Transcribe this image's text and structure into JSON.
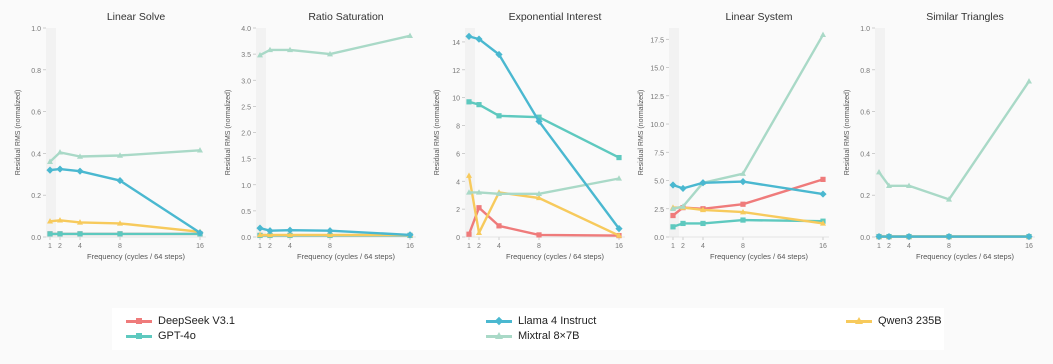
{
  "shared": {
    "xlabel": "Frequency (cycles / 64 steps)",
    "ylabel": "Residual RMS (normalized)",
    "xticks": [
      1,
      2,
      4,
      8,
      16
    ]
  },
  "colors": {
    "DeepSeek V3.1": "#ef7b7b",
    "GPT-4o": "#5ec9bf",
    "Llama 4 Instruct": "#4ab8d0",
    "Mixtral 8×7B": "#a9d9c7",
    "Qwen3 235B": "#f7ca5c"
  },
  "markers": {
    "DeepSeek V3.1": "square",
    "GPT-4o": "square",
    "Llama 4 Instruct": "diamond",
    "Mixtral 8×7B": "triangle",
    "Qwen3 235B": "triangle"
  },
  "legend": {
    "items": [
      {
        "label": "DeepSeek V3.1"
      },
      {
        "label": "GPT-4o"
      },
      {
        "label": "Llama 4 Instruct"
      },
      {
        "label": "Mixtral 8×7B"
      },
      {
        "label": "Qwen3 235B"
      }
    ]
  },
  "chart_data": [
    {
      "type": "line",
      "title": "Linear Solve",
      "xlabel": "Frequency (cycles / 64 steps)",
      "ylabel": "Residual RMS (normalized)",
      "x": [
        1,
        2,
        4,
        8,
        16
      ],
      "ylim": [
        0,
        1.0
      ],
      "yticks": [
        "0.0",
        "0.2",
        "0.4",
        "0.6",
        "0.8",
        "1.0"
      ],
      "series": [
        {
          "name": "DeepSeek V3.1",
          "values": [
            0.015,
            0.015,
            0.015,
            0.015,
            0.015
          ]
        },
        {
          "name": "GPT-4o",
          "values": [
            0.015,
            0.015,
            0.015,
            0.015,
            0.015
          ]
        },
        {
          "name": "Llama 4 Instruct",
          "values": [
            0.32,
            0.325,
            0.315,
            0.27,
            0.02
          ]
        },
        {
          "name": "Mixtral 8×7B",
          "values": [
            0.36,
            0.405,
            0.385,
            0.39,
            0.415
          ]
        },
        {
          "name": "Qwen3 235B",
          "values": [
            0.075,
            0.08,
            0.07,
            0.065,
            0.025
          ]
        }
      ]
    },
    {
      "type": "line",
      "title": "Ratio Saturation",
      "xlabel": "Frequency (cycles / 64 steps)",
      "ylabel": "Residual RMS (normalized)",
      "x": [
        1,
        2,
        4,
        8,
        16
      ],
      "ylim": [
        0,
        4.0
      ],
      "yticks": [
        "0.0",
        "0.5",
        "1.0",
        "1.5",
        "2.0",
        "2.5",
        "3.0",
        "3.5",
        "4.0"
      ],
      "series": [
        {
          "name": "DeepSeek V3.1",
          "values": [
            0.03,
            0.03,
            0.03,
            0.03,
            0.03
          ]
        },
        {
          "name": "GPT-4o",
          "values": [
            0.03,
            0.03,
            0.03,
            0.03,
            0.03
          ]
        },
        {
          "name": "Llama 4 Instruct",
          "values": [
            0.17,
            0.12,
            0.13,
            0.12,
            0.04
          ]
        },
        {
          "name": "Mixtral 8×7B",
          "values": [
            3.48,
            3.58,
            3.58,
            3.5,
            3.85
          ]
        },
        {
          "name": "Qwen3 235B",
          "values": [
            0.04,
            0.04,
            0.04,
            0.04,
            0.04
          ]
        }
      ]
    },
    {
      "type": "line",
      "title": "Exponential Interest",
      "xlabel": "Frequency (cycles / 64 steps)",
      "ylabel": "Residual RMS (normalized)",
      "x": [
        1,
        2,
        4,
        8,
        16
      ],
      "ylim": [
        0,
        15
      ],
      "yticks": [
        "0",
        "2",
        "4",
        "6",
        "8",
        "10",
        "12",
        "14"
      ],
      "series": [
        {
          "name": "DeepSeek V3.1",
          "values": [
            0.2,
            2.1,
            0.8,
            0.15,
            0.1
          ]
        },
        {
          "name": "GPT-4o",
          "values": [
            9.7,
            9.5,
            8.7,
            8.6,
            5.7
          ]
        },
        {
          "name": "Llama 4 Instruct",
          "values": [
            14.4,
            14.2,
            13.1,
            8.3,
            0.6
          ]
        },
        {
          "name": "Mixtral 8×7B",
          "values": [
            3.2,
            3.2,
            3.1,
            3.1,
            4.2
          ]
        },
        {
          "name": "Qwen3 235B",
          "values": [
            4.4,
            0.3,
            3.2,
            2.8,
            0.1
          ]
        }
      ]
    },
    {
      "type": "line",
      "title": "Linear System",
      "xlabel": "Frequency (cycles / 64 steps)",
      "ylabel": "Residual RMS (normalized)",
      "x": [
        1,
        2,
        4,
        8,
        16
      ],
      "ylim": [
        0,
        18.5
      ],
      "yticks": [
        "0.0",
        "2.5",
        "5.0",
        "7.5",
        "10.0",
        "12.5",
        "15.0",
        "17.5"
      ],
      "series": [
        {
          "name": "DeepSeek V3.1",
          "values": [
            1.9,
            2.6,
            2.5,
            2.9,
            5.1
          ]
        },
        {
          "name": "GPT-4o",
          "values": [
            0.9,
            1.2,
            1.2,
            1.5,
            1.4
          ]
        },
        {
          "name": "Llama 4 Instruct",
          "values": [
            4.6,
            4.3,
            4.8,
            4.9,
            3.8
          ]
        },
        {
          "name": "Mixtral 8×7B",
          "values": [
            2.5,
            2.7,
            4.8,
            5.6,
            17.9
          ]
        },
        {
          "name": "Qwen3 235B",
          "values": [
            2.6,
            2.6,
            2.4,
            2.2,
            1.2
          ]
        }
      ]
    },
    {
      "type": "line",
      "title": "Similar Triangles",
      "xlabel": "Frequency (cycles / 64 steps)",
      "ylabel": "Residual RMS (normalized)",
      "x": [
        1,
        2,
        4,
        8,
        16
      ],
      "ylim": [
        0,
        1.0
      ],
      "yticks": [
        "0.0",
        "0.2",
        "0.4",
        "0.6",
        "0.8",
        "1.0"
      ],
      "series": [
        {
          "name": "DeepSeek V3.1",
          "values": [
            0.002,
            0.002,
            0.002,
            0.002,
            0.002
          ]
        },
        {
          "name": "GPT-4o",
          "values": [
            0.002,
            0.002,
            0.002,
            0.002,
            0.002
          ]
        },
        {
          "name": "Llama 4 Instruct",
          "values": [
            0.002,
            0.002,
            0.002,
            0.002,
            0.002
          ]
        },
        {
          "name": "Mixtral 8×7B",
          "values": [
            0.31,
            0.245,
            0.245,
            0.18,
            0.745
          ]
        },
        {
          "name": "Qwen3 235B",
          "values": [
            0.003,
            0.003,
            0.003,
            0.003,
            0.003
          ]
        }
      ]
    }
  ]
}
